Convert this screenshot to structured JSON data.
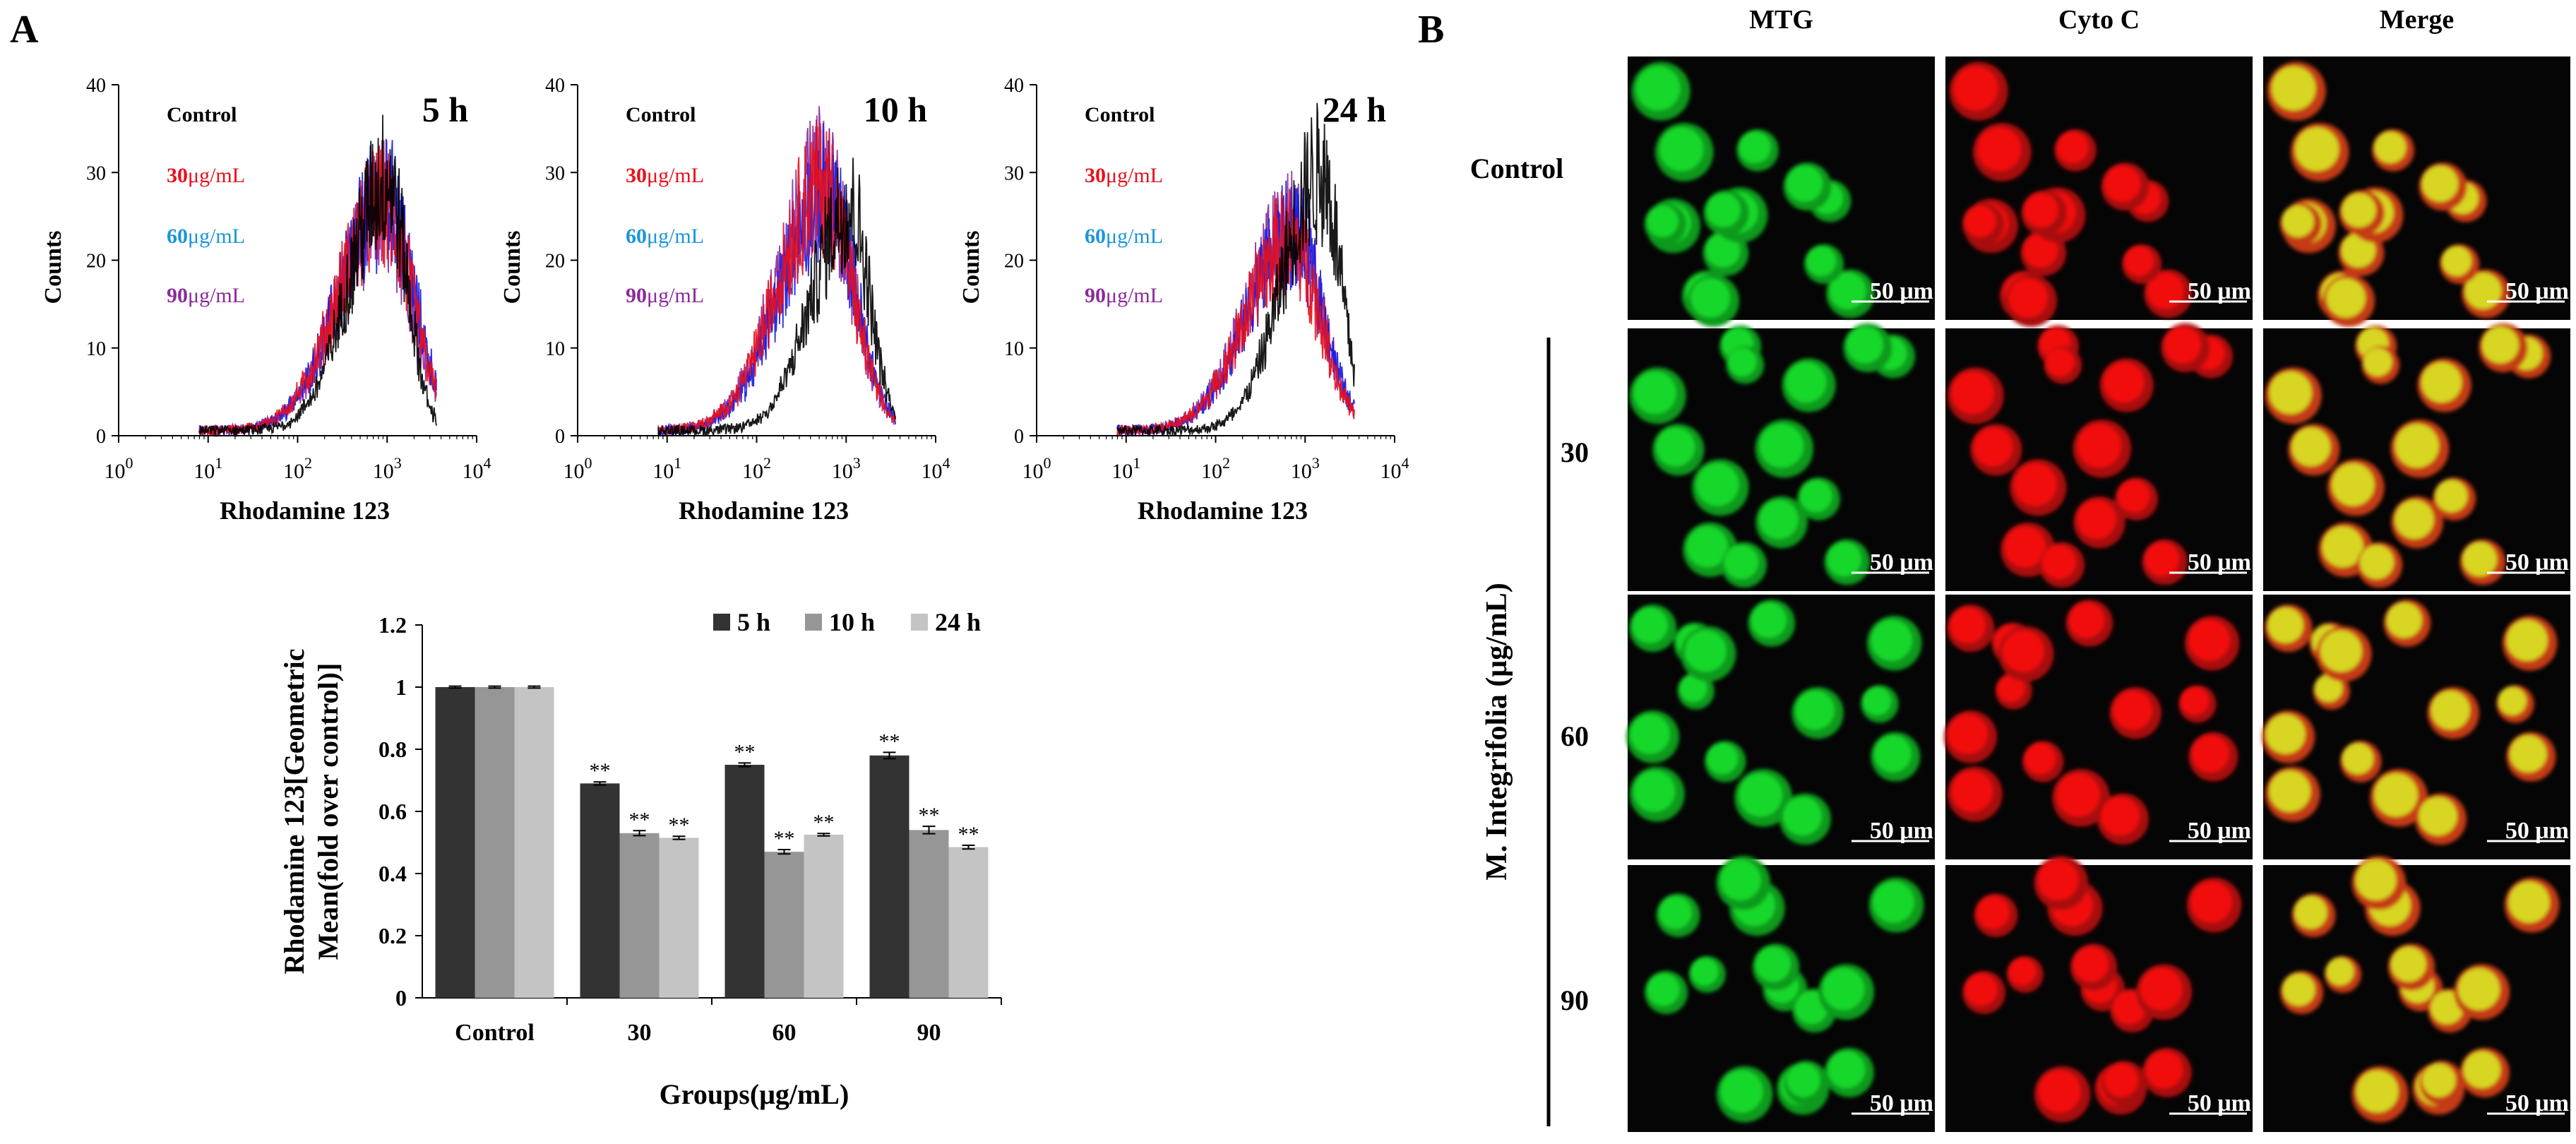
{
  "panel_a_letter": "A",
  "panel_b_letter": "B",
  "histograms": {
    "legend": [
      "Control",
      "30",
      "60",
      "90"
    ],
    "legend_unit": "μg/mL",
    "y_label": "Counts",
    "x_label": "Rhodamine 123",
    "y_ticks": [
      "0",
      "10",
      "20",
      "30",
      "40"
    ],
    "x_tick_base": "10",
    "x_tick_exps": [
      "0",
      "1",
      "2",
      "3",
      "4"
    ],
    "colors": {
      "Control": "#000000",
      "30": "#e8101c",
      "60": "#1a96d8",
      "90": "#8a2a9a",
      "blue": "#1a1ae0"
    }
  },
  "chart_data": [
    {
      "type": "line",
      "title": "5 h",
      "xscale": "log",
      "xlim": [
        1,
        10000
      ],
      "ylim": [
        0,
        40
      ],
      "xlabel": "Rhodamine 123",
      "ylabel": "Counts",
      "series": [
        {
          "name": "Control",
          "peak_x": 1000,
          "peak_count": 37
        },
        {
          "name": "30μg/mL",
          "peak_x": 900,
          "peak_count": 33
        },
        {
          "name": "60μg/mL",
          "peak_x": 950,
          "peak_count": 34
        },
        {
          "name": "90μg/mL",
          "peak_x": 900,
          "peak_count": 32
        }
      ]
    },
    {
      "type": "line",
      "title": "10 h",
      "xscale": "log",
      "xlim": [
        1,
        10000
      ],
      "ylim": [
        0,
        40
      ],
      "xlabel": "Rhodamine 123",
      "ylabel": "Counts",
      "series": [
        {
          "name": "Control",
          "peak_x": 1100,
          "peak_count": 33
        },
        {
          "name": "30μg/mL",
          "peak_x": 550,
          "peak_count": 36
        },
        {
          "name": "60μg/mL",
          "peak_x": 600,
          "peak_count": 35
        },
        {
          "name": "90μg/mL",
          "peak_x": 550,
          "peak_count": 37
        }
      ]
    },
    {
      "type": "line",
      "title": "24 h",
      "xscale": "log",
      "xlim": [
        1,
        10000
      ],
      "ylim": [
        0,
        40
      ],
      "xlabel": "Rhodamine 123",
      "ylabel": "Counts",
      "series": [
        {
          "name": "Control",
          "peak_x": 1500,
          "peak_count": 38
        },
        {
          "name": "30μg/mL",
          "peak_x": 700,
          "peak_count": 28
        },
        {
          "name": "60μg/mL",
          "peak_x": 750,
          "peak_count": 29
        },
        {
          "name": "90μg/mL",
          "peak_x": 700,
          "peak_count": 30
        }
      ]
    },
    {
      "type": "bar",
      "title": "",
      "categories": [
        "Control",
        "30",
        "60",
        "90"
      ],
      "series": [
        {
          "name": "5 h",
          "color": "#333333",
          "values": [
            1.0,
            0.69,
            0.75,
            0.78
          ],
          "errors": [
            0.003,
            0.005,
            0.006,
            0.01
          ],
          "sig": [
            "",
            "**",
            "**",
            "**"
          ]
        },
        {
          "name": "10 h",
          "color": "#969696",
          "values": [
            1.0,
            0.53,
            0.47,
            0.54
          ],
          "errors": [
            0.003,
            0.008,
            0.007,
            0.012
          ],
          "sig": [
            "",
            "**",
            "**",
            "**"
          ]
        },
        {
          "name": "24 h",
          "color": "#c4c4c4",
          "values": [
            1.0,
            0.515,
            0.525,
            0.485
          ],
          "errors": [
            0.003,
            0.005,
            0.004,
            0.006
          ],
          "sig": [
            "",
            "**",
            "**",
            "**"
          ]
        }
      ],
      "xlabel": "Groups(μg/mL)",
      "ylabel_line1": "Rhodamine 123[Geometric",
      "ylabel_line2": "Mean(fold over control)]",
      "ylim": [
        0,
        1.2
      ],
      "yticks": [
        "0",
        "0.2",
        "0.4",
        "0.6",
        "0.8",
        "1",
        "1.2"
      ],
      "legend_position": "top"
    }
  ],
  "microscopy": {
    "columns": [
      "MTG",
      "Cyto C",
      "Merge"
    ],
    "rows": [
      "Control",
      "30",
      "60",
      "90"
    ],
    "group_label": "M. Integrifolia (μg/mL)",
    "scale_bar": "50 μm"
  }
}
